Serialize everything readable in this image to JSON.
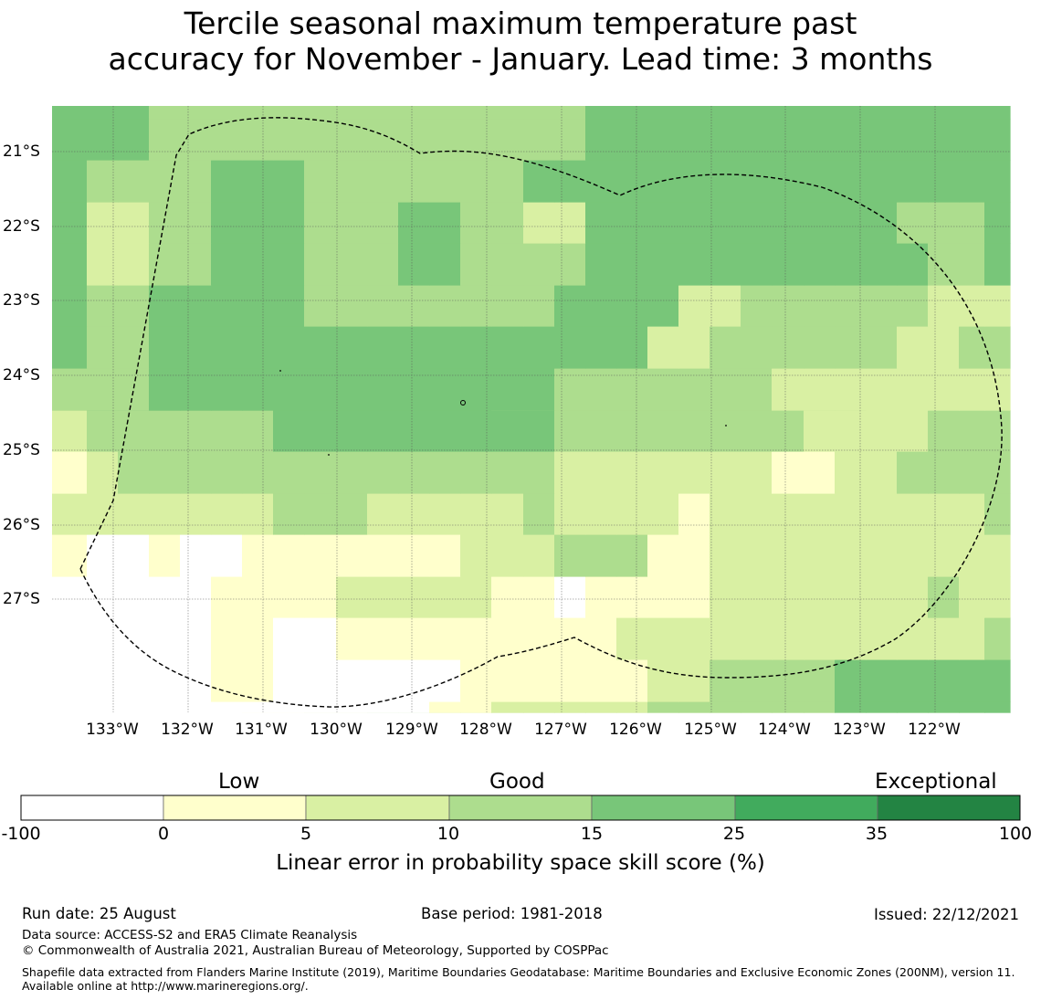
{
  "title": {
    "line1": "Tercile seasonal maximum temperature past",
    "line2": "accuracy for November - January. Lead time: 3 months"
  },
  "map": {
    "lat_labels": [
      "21°S",
      "22°S",
      "23°S",
      "24°S",
      "25°S",
      "26°S",
      "27°S"
    ],
    "lon_labels": [
      "133°W",
      "132°W",
      "131°W",
      "130°W",
      "129°W",
      "128°W",
      "127°W",
      "126°W",
      "125°W",
      "124°W",
      "123°W",
      "122°W"
    ],
    "extent": {
      "lon_west": -133.8,
      "lon_east": -121.0,
      "lat_north": -20.38,
      "lat_south": -28.48
    },
    "grid_resolution_deg": [
      0.833,
      0.556
    ],
    "grid_lines": "dotted",
    "boundary_line": "dashed",
    "score_grid_category_rows": [
      [
        0,
        0,
        0,
        0,
        0,
        0,
        1,
        1,
        2,
        2,
        3,
        3,
        3,
        3,
        3,
        3,
        3,
        3,
        3,
        3,
        3,
        3,
        3,
        3,
        3,
        3,
        3,
        3,
        3,
        3,
        4
      ],
      [
        0,
        0,
        0,
        0,
        0,
        0,
        0,
        0,
        0,
        0,
        0,
        0,
        1,
        1,
        2,
        2,
        2,
        2,
        2,
        3,
        3,
        3,
        3,
        3,
        3,
        4,
        4,
        4,
        4,
        4,
        4
      ],
      [
        0,
        0,
        0,
        0,
        0,
        1,
        1,
        0,
        0,
        0,
        0,
        0,
        0,
        1,
        1,
        1,
        1,
        1,
        1,
        2,
        2,
        3,
        3,
        3,
        3,
        4,
        4,
        4,
        4,
        4,
        4
      ],
      [
        0,
        0,
        0,
        0,
        0,
        1,
        1,
        0,
        0,
        1,
        1,
        1,
        1,
        1,
        1,
        1,
        1,
        1,
        2,
        2,
        2,
        2,
        2,
        2,
        2,
        2,
        2,
        2,
        2,
        2,
        3
      ],
      [
        0,
        0,
        0,
        0,
        0,
        1,
        1,
        1,
        1,
        2,
        2,
        2,
        2,
        2,
        1,
        1,
        0,
        1,
        1,
        1,
        1,
        2,
        2,
        2,
        2,
        2,
        2,
        2,
        3,
        2,
        2
      ],
      [
        1,
        0,
        0,
        1,
        0,
        0,
        1,
        1,
        1,
        1,
        1,
        1,
        1,
        2,
        2,
        2,
        3,
        3,
        3,
        1,
        1,
        2,
        2,
        2,
        2,
        2,
        2,
        2,
        2,
        2,
        2
      ],
      [
        2,
        2,
        2,
        2,
        2,
        2,
        2,
        3,
        3,
        3,
        2,
        2,
        2,
        2,
        2,
        3,
        2,
        2,
        2,
        2,
        1,
        2,
        2,
        2,
        2,
        2,
        2,
        2,
        2,
        2,
        3
      ],
      [
        1,
        2,
        3,
        3,
        3,
        3,
        3,
        3,
        3,
        3,
        3,
        3,
        3,
        3,
        3,
        3,
        2,
        2,
        2,
        2,
        2,
        2,
        2,
        1,
        1,
        2,
        2,
        3,
        3,
        3,
        3
      ],
      [
        2,
        3,
        3,
        3,
        3,
        3,
        3,
        4,
        4,
        4,
        4,
        4,
        4,
        4,
        4,
        4,
        3,
        3,
        3,
        3,
        3,
        3,
        3,
        3,
        2,
        2,
        2,
        2,
        3,
        3,
        3
      ],
      [
        3,
        4,
        4,
        4,
        4,
        4,
        4,
        4,
        4,
        4,
        4,
        4,
        4,
        4,
        3,
        3,
        3,
        3,
        3,
        3,
        3,
        3,
        3,
        3,
        3,
        3,
        2,
        2,
        2,
        2,
        2
      ],
      [
        3,
        3,
        3,
        4,
        4,
        4,
        4,
        4,
        4,
        4,
        4,
        4,
        4,
        4,
        4,
        4,
        3,
        3,
        3,
        3,
        3,
        3,
        3,
        2,
        2,
        2,
        2,
        2,
        2,
        2,
        2
      ],
      [
        4,
        3,
        3,
        4,
        4,
        4,
        4,
        4,
        4,
        4,
        4,
        4,
        4,
        4,
        4,
        4,
        4,
        4,
        4,
        2,
        2,
        3,
        3,
        3,
        3,
        3,
        3,
        2,
        2,
        3,
        3
      ],
      [
        4,
        3,
        3,
        4,
        4,
        4,
        4,
        4,
        3,
        3,
        3,
        3,
        3,
        3,
        3,
        3,
        4,
        4,
        4,
        4,
        2,
        2,
        3,
        3,
        3,
        3,
        3,
        3,
        2,
        2,
        2
      ],
      [
        4,
        2,
        2,
        3,
        3,
        4,
        4,
        4,
        3,
        3,
        3,
        4,
        4,
        3,
        3,
        3,
        3,
        4,
        4,
        4,
        4,
        4,
        4,
        4,
        4,
        4,
        4,
        4,
        3,
        3,
        4
      ],
      [
        4,
        2,
        2,
        3,
        3,
        4,
        4,
        4,
        3,
        3,
        3,
        4,
        4,
        3,
        3,
        2,
        2,
        4,
        4,
        4,
        4,
        4,
        4,
        4,
        4,
        4,
        4,
        3,
        3,
        3,
        4
      ],
      [
        4,
        3,
        3,
        3,
        3,
        4,
        4,
        4,
        3,
        3,
        3,
        3,
        3,
        3,
        3,
        4,
        4,
        4,
        4,
        4,
        4,
        4,
        4,
        4,
        4,
        4,
        4,
        4,
        4,
        4,
        4
      ],
      [
        4,
        4,
        4,
        3,
        3,
        3,
        3,
        3,
        3,
        3,
        3,
        3,
        3,
        3,
        3,
        3,
        3,
        4,
        4,
        4,
        4,
        4,
        4,
        4,
        4,
        4,
        4,
        4,
        4,
        4,
        4
      ],
      [
        4,
        4,
        4,
        3,
        3,
        3,
        3,
        3,
        3,
        3,
        3,
        3,
        3,
        3,
        3,
        3,
        3,
        4,
        4,
        4,
        4,
        4,
        4,
        4,
        4,
        4,
        4,
        4,
        4,
        4,
        4
      ]
    ],
    "grid_row_order": "south-to-north",
    "category_colors": [
      "#ffffff",
      "#ffffcc",
      "#d9f0a3",
      "#addd8e",
      "#78c679",
      "#41ab5d",
      "#238443"
    ]
  },
  "legend": {
    "categories": [
      "Low",
      "Good",
      "Exceptional"
    ],
    "bins": [
      {
        "from": -100,
        "to": 0,
        "color": "#ffffff"
      },
      {
        "from": 0,
        "to": 5,
        "color": "#ffffcc"
      },
      {
        "from": 5,
        "to": 10,
        "color": "#d9f0a3"
      },
      {
        "from": 10,
        "to": 15,
        "color": "#addd8e"
      },
      {
        "from": 15,
        "to": 25,
        "color": "#78c679"
      },
      {
        "from": 25,
        "to": 35,
        "color": "#41ab5d"
      },
      {
        "from": 35,
        "to": 100,
        "color": "#238443"
      }
    ],
    "ticks": [
      "-100",
      "0",
      "5",
      "10",
      "15",
      "25",
      "35",
      "100"
    ],
    "title": "Linear error in probability space skill score (%)"
  },
  "footer": {
    "run_date": "Run date: 25 August",
    "base_period": "Base period: 1981-2018",
    "issued": "Issued: 22/12/2021",
    "data_source": "Data source: ACCESS-S2 and ERA5 Climate Reanalysis",
    "copyright": "© Commonwealth of Australia 2021, Australian Bureau of Meteorology, Supported by COSPPac",
    "shapefile_note": "Shapefile data extracted from Flanders Marine Institute (2019), Maritime Boundaries Geodatabase: Maritime Boundaries and Exclusive Economic Zones (200NM), version 11. Available online at http://www.marineregions.org/."
  }
}
